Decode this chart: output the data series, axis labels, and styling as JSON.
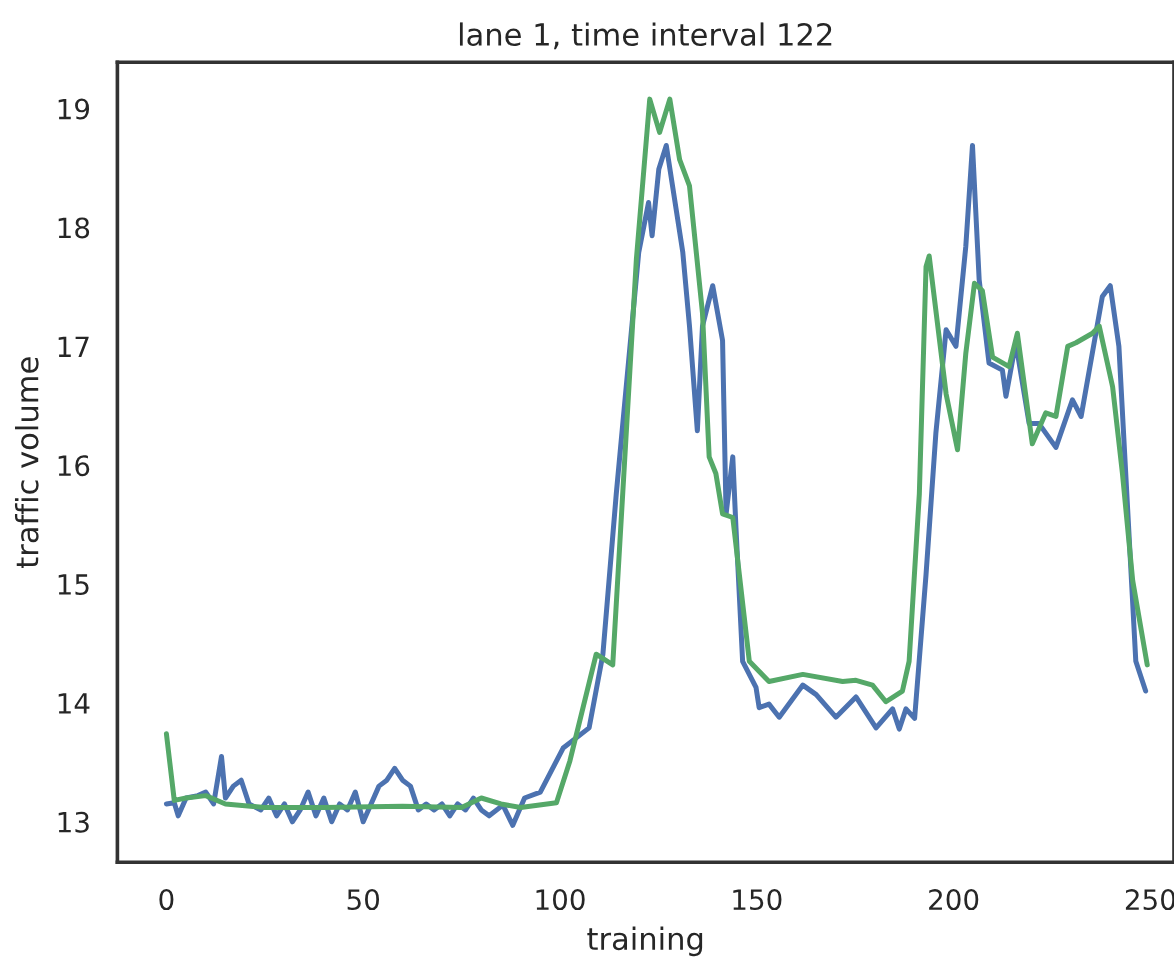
{
  "chart_data": {
    "type": "line",
    "title": "lane 1, time interval 122",
    "xlabel": "training",
    "ylabel": "traffic volume",
    "xlim": [
      -12.45,
      256
    ],
    "ylim": [
      12.66,
      19.39
    ],
    "xticks": [
      0,
      50,
      100,
      150,
      200,
      250
    ],
    "yticks": [
      13,
      14,
      15,
      16,
      17,
      18,
      19
    ],
    "grid": false,
    "series": [
      {
        "color": "#4c72b0",
        "x": [
          0,
          2,
          3,
          5,
          8,
          10,
          12,
          14,
          15,
          17,
          19,
          21,
          24,
          26,
          28,
          30,
          32,
          34,
          36,
          38,
          40,
          42,
          44,
          46,
          48,
          50,
          52,
          54,
          56,
          58,
          60,
          62,
          64,
          66,
          68,
          70,
          72,
          74,
          76,
          78,
          80,
          82,
          85.5,
          88,
          91,
          95,
          100.8,
          107.4,
          110.9,
          114.3,
          120,
          122.5,
          123.4,
          125.1,
          127,
          131.2,
          132.9,
          134.9,
          136.2,
          138.8,
          141.3,
          142.2,
          143.9,
          144.7,
          146.4,
          149.8,
          150.6,
          153.1,
          155.7,
          161.7,
          165.1,
          170.1,
          175.2,
          180.3,
          184.5,
          186.2,
          187.9,
          190.1,
          193,
          195.5,
          198.1,
          200.6,
          203.1,
          204.8,
          206.5,
          209,
          212.4,
          213.3,
          215.8,
          219.2,
          221.7,
          226,
          230.2,
          232.4,
          237.8,
          239.8,
          242,
          246.3,
          248.8
        ],
        "values": [
          13.15,
          13.16,
          13.05,
          13.2,
          13.22,
          13.25,
          13.15,
          13.55,
          13.2,
          13.3,
          13.35,
          13.15,
          13.1,
          13.2,
          13.05,
          13.15,
          13.0,
          13.1,
          13.25,
          13.05,
          13.2,
          13.0,
          13.15,
          13.1,
          13.25,
          13.0,
          13.15,
          13.3,
          13.35,
          13.45,
          13.35,
          13.3,
          13.1,
          13.15,
          13.1,
          13.15,
          13.05,
          13.15,
          13.1,
          13.2,
          13.1,
          13.05,
          13.14,
          12.97,
          13.2,
          13.25,
          13.62,
          13.79,
          14.41,
          15.76,
          17.79,
          18.21,
          17.93,
          18.49,
          18.69,
          17.79,
          17.17,
          16.29,
          17.17,
          17.51,
          17.05,
          15.59,
          16.07,
          15.48,
          14.35,
          14.13,
          13.96,
          13.99,
          13.88,
          14.15,
          14.07,
          13.88,
          14.05,
          13.79,
          13.95,
          13.78,
          13.95,
          13.87,
          15.08,
          16.27,
          17.14,
          17.0,
          17.84,
          18.69,
          17.56,
          16.86,
          16.8,
          16.58,
          17.03,
          16.35,
          16.35,
          16.15,
          16.55,
          16.41,
          17.42,
          17.51,
          17.0,
          14.35,
          14.1
        ]
      },
      {
        "color": "#55a868",
        "x": [
          0,
          2,
          5,
          10,
          15,
          25,
          40,
          60,
          75,
          80,
          85,
          90,
          99.1,
          102.5,
          109.2,
          113.4,
          119.4,
          122.8,
          125.3,
          127.9,
          130.4,
          132.9,
          136.2,
          137.9,
          139.6,
          141.3,
          143.9,
          148.1,
          153.1,
          161.7,
          171.8,
          175.2,
          179.4,
          182.8,
          187,
          188.7,
          191.3,
          193,
          193.8,
          198.1,
          201,
          203.1,
          205.3,
          207.3,
          209.9,
          214.1,
          216.2,
          220,
          223.4,
          226,
          229,
          231.1,
          235.3,
          237,
          240.4,
          242.9,
          245.5,
          249.2
        ],
        "values": [
          13.74,
          13.18,
          13.2,
          13.22,
          13.15,
          13.12,
          13.12,
          13.13,
          13.12,
          13.2,
          13.15,
          13.12,
          13.16,
          13.51,
          14.41,
          14.32,
          17.73,
          19.08,
          18.8,
          19.08,
          18.57,
          18.35,
          17.28,
          16.07,
          15.93,
          15.59,
          15.56,
          14.35,
          14.18,
          14.24,
          14.18,
          14.19,
          14.15,
          14.01,
          14.1,
          14.35,
          15.76,
          17.67,
          17.76,
          16.6,
          16.13,
          16.94,
          17.53,
          17.47,
          16.91,
          16.83,
          17.11,
          16.18,
          16.44,
          16.41,
          17.0,
          17.03,
          17.11,
          17.17,
          16.66,
          15.93,
          15.03,
          14.32
        ]
      }
    ]
  }
}
